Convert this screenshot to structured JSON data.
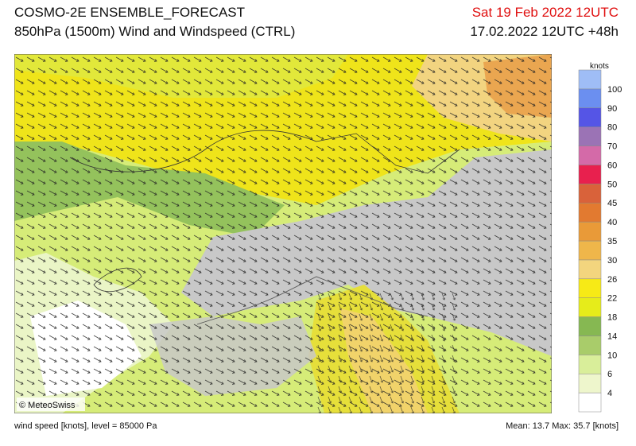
{
  "header": {
    "title": "COSMO-2E ENSEMBLE_FORECAST",
    "subtitle": "850hPa (1500m) Wind and Windspeed (CTRL)",
    "valid_time": "Sat 19 Feb 2022 12UTC",
    "run_time": "17.02.2022 12UTC +48h"
  },
  "legend": {
    "unit": "knots",
    "labels": [
      "4",
      "6",
      "10",
      "14",
      "18",
      "22",
      "26",
      "30",
      "35",
      "40",
      "45",
      "50",
      "60",
      "70",
      "80",
      "90",
      "100"
    ],
    "colors": [
      "#ffffff",
      "#eef6cc",
      "#d9ee9a",
      "#a9cc6a",
      "#86b852",
      "#e6ec1a",
      "#f7ea16",
      "#f3d57e",
      "#efb64a",
      "#e99a38",
      "#e27a30",
      "#d9623a",
      "#e8204e",
      "#d46aa8",
      "#9b73b5",
      "#5555e6",
      "#6b8ff0",
      "#9fbdf6"
    ]
  },
  "copyright": "© MeteoSwiss",
  "footer": {
    "left": "wind speed [knots], level = 85000 Pa",
    "right": "Mean:  13.7 Max:  35.7 [knots]"
  }
}
